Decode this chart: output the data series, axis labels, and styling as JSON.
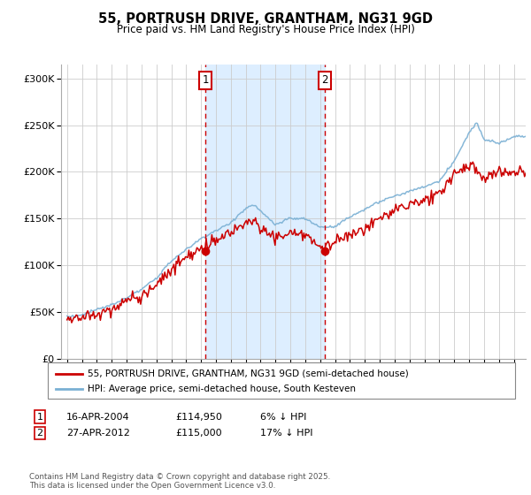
{
  "title": "55, PORTRUSH DRIVE, GRANTHAM, NG31 9GD",
  "subtitle": "Price paid vs. HM Land Registry's House Price Index (HPI)",
  "ylabel_ticks": [
    0,
    50000,
    100000,
    150000,
    200000,
    250000,
    300000
  ],
  "ylabel_labels": [
    "£0",
    "£50K",
    "£100K",
    "£150K",
    "£200K",
    "£250K",
    "£300K"
  ],
  "ylim": [
    0,
    315000
  ],
  "xlim_start": 1994.6,
  "xlim_end": 2025.8,
  "sale1_date": 2004.29,
  "sale1_price": 114950,
  "sale2_date": 2012.32,
  "sale2_price": 115000,
  "red_line_color": "#cc0000",
  "blue_line_color": "#7ab0d4",
  "shade_color": "#ddeeff",
  "legend_line1": "55, PORTRUSH DRIVE, GRANTHAM, NG31 9GD (semi-detached house)",
  "legend_line2": "HPI: Average price, semi-detached house, South Kesteven",
  "footnote_line1": "Contains HM Land Registry data © Crown copyright and database right 2025.",
  "footnote_line2": "This data is licensed under the Open Government Licence v3.0.",
  "table_row1": [
    "1",
    "16-APR-2004",
    "£114,950",
    "6% ↓ HPI"
  ],
  "table_row2": [
    "2",
    "27-APR-2012",
    "£115,000",
    "17% ↓ HPI"
  ],
  "xtick_years": [
    1995,
    1996,
    1997,
    1998,
    1999,
    2000,
    2001,
    2002,
    2003,
    2004,
    2005,
    2006,
    2007,
    2008,
    2009,
    2010,
    2011,
    2012,
    2013,
    2014,
    2015,
    2016,
    2017,
    2018,
    2019,
    2020,
    2021,
    2022,
    2023,
    2024,
    2025
  ],
  "hpi_anchors_x": [
    1995,
    1996,
    1997,
    1998,
    1999,
    2000,
    2001,
    2002,
    2003,
    2004,
    2005,
    2006,
    2007,
    2007.5,
    2008,
    2009,
    2010,
    2011,
    2012,
    2013,
    2014,
    2015,
    2016,
    2017,
    2018,
    2019,
    2020,
    2021,
    2022,
    2022.5,
    2023,
    2024,
    2025
  ],
  "hpi_anchors_y": [
    45000,
    47000,
    52000,
    58000,
    65000,
    72000,
    85000,
    103000,
    115000,
    127000,
    135000,
    143000,
    158000,
    162000,
    155000,
    140000,
    148000,
    147000,
    138000,
    140000,
    150000,
    158000,
    165000,
    173000,
    178000,
    182000,
    188000,
    210000,
    240000,
    252000,
    235000,
    230000,
    238000
  ],
  "red_anchors_x": [
    1995,
    1996,
    1997,
    1998,
    1999,
    2000,
    2001,
    2002,
    2003,
    2004,
    2005,
    2006,
    2007,
    2007.5,
    2008,
    2009,
    2010,
    2011,
    2012,
    2013,
    2014,
    2015,
    2016,
    2017,
    2018,
    2019,
    2020,
    2021,
    2022,
    2023,
    2024,
    2025
  ],
  "red_anchors_y": [
    42000,
    44000,
    49000,
    55000,
    62000,
    68000,
    80000,
    97000,
    110000,
    119000,
    128000,
    137000,
    150000,
    152000,
    143000,
    132000,
    139000,
    138000,
    125000,
    128000,
    138000,
    146000,
    153000,
    162000,
    167000,
    172000,
    178000,
    198000,
    210000,
    193000,
    198000,
    200000
  ]
}
